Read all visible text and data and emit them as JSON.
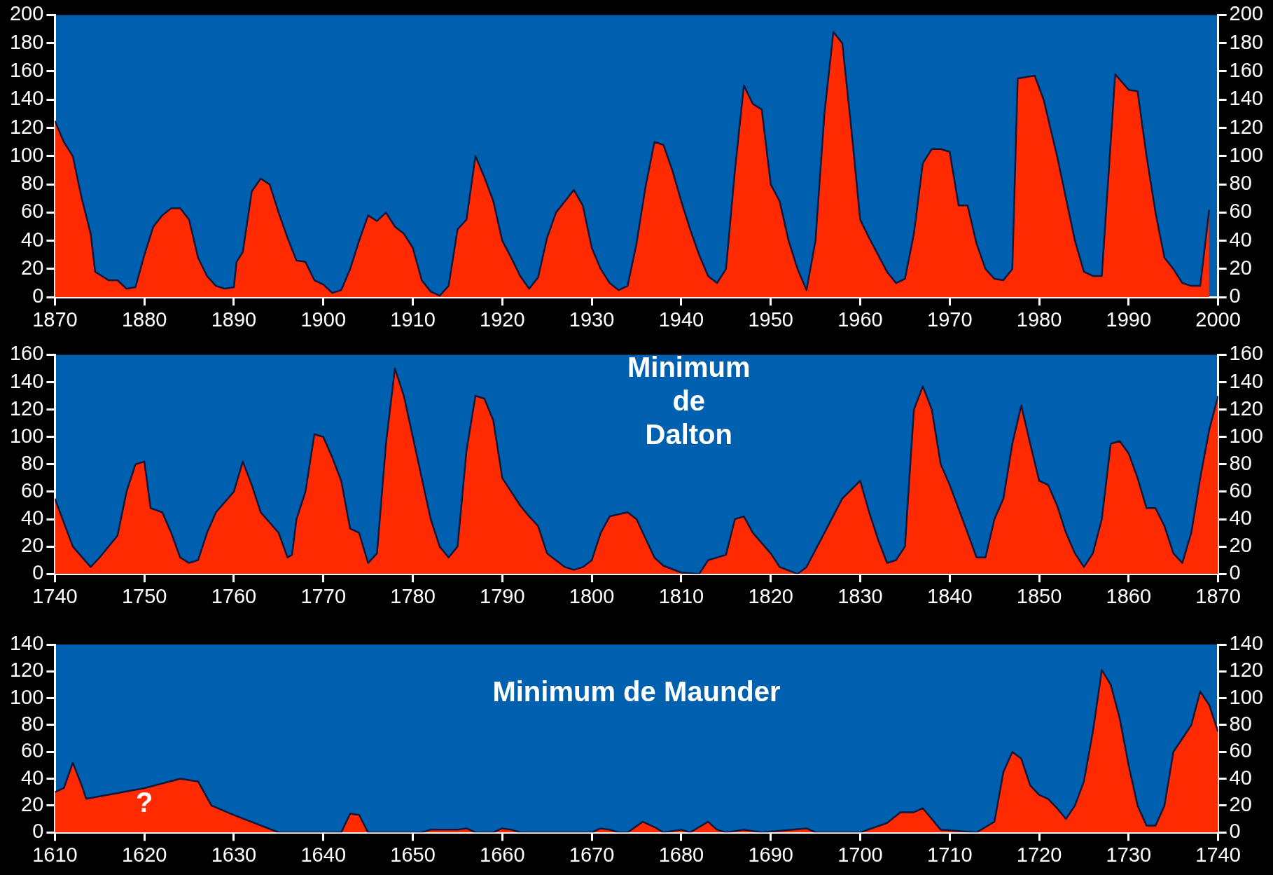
{
  "chart_data": [
    {
      "type": "area",
      "color": "#ff2a00",
      "x": [
        1870,
        1871,
        1872,
        1873,
        1874,
        1874.5,
        1876,
        1877,
        1878,
        1879,
        1880,
        1881,
        1882,
        1883,
        1884,
        1885,
        1886,
        1887,
        1888,
        1889,
        1890,
        1890.3,
        1891,
        1892,
        1893,
        1894,
        1895,
        1896,
        1897,
        1898,
        1899,
        1900,
        1901,
        1902,
        1903,
        1904,
        1905,
        1906,
        1907,
        1908,
        1909,
        1910,
        1911,
        1912,
        1913,
        1914,
        1915,
        1916,
        1917,
        1918,
        1919,
        1920,
        1921,
        1922,
        1923,
        1924,
        1925,
        1926,
        1927,
        1928,
        1929,
        1930,
        1931,
        1932,
        1933,
        1934,
        1935,
        1936,
        1937,
        1938,
        1939,
        1940,
        1941,
        1942,
        1943,
        1944,
        1945,
        1946,
        1947,
        1948,
        1949,
        1950,
        1951,
        1952,
        1953,
        1954,
        1955,
        1956,
        1957,
        1958,
        1959,
        1960,
        1961,
        1962,
        1963,
        1964,
        1965,
        1966,
        1967,
        1968,
        1969,
        1970,
        1971,
        1972,
        1973,
        1974,
        1975,
        1976,
        1977,
        1977.6,
        1979.5,
        1980.5,
        1982,
        1983,
        1984,
        1985,
        1986,
        1987,
        1988.5,
        1990,
        1991,
        1992,
        1993,
        1994,
        1995,
        1996,
        1997,
        1998,
        1999
      ],
      "values": [
        125,
        110,
        100,
        70,
        45,
        18,
        12,
        12,
        6,
        7,
        30,
        50,
        58,
        63,
        63,
        55,
        28,
        15,
        8,
        6,
        7,
        25,
        32,
        75,
        84,
        80,
        60,
        42,
        26,
        25,
        12,
        9,
        3,
        5,
        20,
        40,
        58,
        54,
        60,
        50,
        45,
        35,
        12,
        4,
        1,
        8,
        48,
        55,
        100,
        85,
        68,
        40,
        28,
        15,
        6,
        14,
        42,
        60,
        68,
        76,
        65,
        35,
        20,
        10,
        5,
        8,
        38,
        78,
        110,
        108,
        90,
        68,
        48,
        30,
        15,
        10,
        20,
        90,
        150,
        137,
        133,
        80,
        68,
        40,
        20,
        5,
        40,
        130,
        188,
        180,
        120,
        55,
        42,
        30,
        18,
        10,
        13,
        45,
        95,
        105,
        105,
        103,
        65,
        65,
        38,
        20,
        13,
        12,
        20,
        155,
        157,
        140,
        100,
        70,
        40,
        18,
        15,
        15,
        158,
        147,
        146,
        100,
        60,
        28,
        20,
        10,
        8,
        8,
        62
      ],
      "xlim": [
        1870,
        2000
      ],
      "xticks": [
        1870,
        1880,
        1890,
        1900,
        1910,
        1920,
        1930,
        1940,
        1950,
        1960,
        1970,
        1980,
        1990,
        2000
      ],
      "ylim": [
        0,
        200
      ],
      "yticks": [
        0,
        20,
        40,
        60,
        80,
        100,
        120,
        140,
        160,
        180,
        200
      ],
      "y2lim": [
        0,
        200
      ],
      "y2ticks": [
        0,
        20,
        40,
        60,
        80,
        100,
        120,
        140,
        160,
        180,
        200
      ]
    },
    {
      "type": "area",
      "color": "#ff2a00",
      "x": [
        1740,
        1742,
        1744,
        1745,
        1747,
        1748,
        1749,
        1750,
        1750.7,
        1752,
        1753,
        1754,
        1755,
        1756,
        1757,
        1758,
        1760,
        1761,
        1762,
        1763,
        1765,
        1766,
        1766.5,
        1767,
        1768,
        1769,
        1770,
        1771,
        1772,
        1773,
        1774,
        1775,
        1776,
        1777,
        1778,
        1779,
        1780,
        1781,
        1782,
        1783,
        1784,
        1785,
        1786,
        1787,
        1788,
        1789,
        1790,
        1791,
        1792,
        1793,
        1794,
        1795,
        1796,
        1797,
        1798,
        1799,
        1800,
        1801,
        1802,
        1804,
        1805,
        1807,
        1808,
        1810,
        1812,
        1813,
        1815,
        1816,
        1817,
        1818,
        1820,
        1821,
        1823,
        1824,
        1826,
        1828,
        1830,
        1831,
        1832,
        1833,
        1834,
        1835,
        1836,
        1837,
        1838,
        1839,
        1840,
        1842,
        1843,
        1844,
        1845,
        1846,
        1847,
        1848,
        1849,
        1850,
        1851,
        1852,
        1853,
        1854,
        1855,
        1856,
        1857,
        1858,
        1859,
        1860,
        1861,
        1862,
        1863,
        1864,
        1865,
        1866,
        1867,
        1868,
        1869,
        1870
      ],
      "values": [
        55,
        20,
        5,
        12,
        28,
        60,
        80,
        82,
        48,
        45,
        30,
        12,
        8,
        10,
        30,
        45,
        60,
        82,
        65,
        45,
        30,
        12,
        14,
        40,
        60,
        102,
        100,
        85,
        68,
        33,
        30,
        8,
        15,
        95,
        150,
        130,
        100,
        70,
        40,
        20,
        12,
        20,
        90,
        130,
        128,
        112,
        70,
        60,
        50,
        42,
        35,
        15,
        10,
        5,
        3,
        5,
        10,
        30,
        42,
        45,
        40,
        12,
        6,
        1,
        0,
        10,
        14,
        40,
        42,
        30,
        15,
        5,
        0,
        5,
        30,
        55,
        68,
        45,
        25,
        8,
        10,
        20,
        120,
        137,
        120,
        80,
        65,
        30,
        12,
        12,
        40,
        55,
        95,
        123,
        95,
        68,
        65,
        50,
        30,
        15,
        5,
        15,
        40,
        95,
        97,
        88,
        70,
        48,
        48,
        35,
        15,
        8,
        30,
        70,
        105,
        130
      ],
      "xlim": [
        1740,
        1870
      ],
      "xticks": [
        1740,
        1750,
        1760,
        1770,
        1780,
        1790,
        1800,
        1810,
        1820,
        1830,
        1840,
        1850,
        1860,
        1870
      ],
      "ylim": [
        0,
        160
      ],
      "yticks": [
        0,
        20,
        40,
        60,
        80,
        100,
        120,
        140,
        160
      ],
      "y2lim": [
        0,
        160
      ],
      "y2ticks": [
        0,
        20,
        40,
        60,
        80,
        100,
        120,
        140,
        160
      ],
      "annotations": [
        "Minimum\nde\nDalton"
      ]
    },
    {
      "type": "area",
      "color": "#ff2a00",
      "x": [
        1610,
        1611,
        1612,
        1613,
        1613.5,
        1620,
        1624,
        1626,
        1627.5,
        1630,
        1635,
        1642,
        1643,
        1644,
        1645,
        1651,
        1652,
        1655,
        1656,
        1657,
        1659,
        1660,
        1661,
        1662,
        1670,
        1671,
        1672,
        1673,
        1674,
        1675.7,
        1677,
        1678,
        1680,
        1681,
        1683,
        1684,
        1685,
        1687,
        1689,
        1694,
        1695,
        1700,
        1703,
        1704.5,
        1706,
        1707,
        1708,
        1709,
        1711,
        1713,
        1715,
        1716,
        1717,
        1718,
        1719,
        1720,
        1721,
        1722,
        1723,
        1724,
        1725,
        1726,
        1727,
        1728,
        1729,
        1730,
        1731,
        1732,
        1733,
        1734,
        1735,
        1737,
        1738,
        1739,
        1740
      ],
      "values": [
        30,
        33,
        52,
        35,
        25,
        33,
        40,
        38,
        20,
        13,
        0,
        0,
        14,
        13,
        0,
        0,
        2,
        2,
        3,
        0,
        0,
        3,
        2,
        0,
        0,
        3,
        2,
        0,
        0,
        8,
        4,
        0,
        2,
        0,
        8,
        2,
        0,
        2,
        0,
        3,
        0,
        0,
        7,
        15,
        15,
        18,
        10,
        2,
        1,
        0,
        8,
        45,
        60,
        55,
        35,
        28,
        25,
        18,
        10,
        20,
        38,
        75,
        121,
        110,
        85,
        50,
        20,
        5,
        5,
        20,
        60,
        80,
        105,
        95,
        75
      ],
      "xlim": [
        1610,
        1740
      ],
      "xticks": [
        1610,
        1620,
        1630,
        1640,
        1650,
        1660,
        1670,
        1680,
        1690,
        1700,
        1710,
        1720,
        1730,
        1740
      ],
      "ylim": [
        0,
        140
      ],
      "yticks": [
        0,
        20,
        40,
        60,
        80,
        100,
        120,
        140
      ],
      "y2lim": [
        0,
        140
      ],
      "y2ticks": [
        0,
        20,
        40,
        60,
        80,
        100,
        120,
        140
      ],
      "annotations": [
        "Minimum de Maunder",
        "?"
      ]
    }
  ]
}
